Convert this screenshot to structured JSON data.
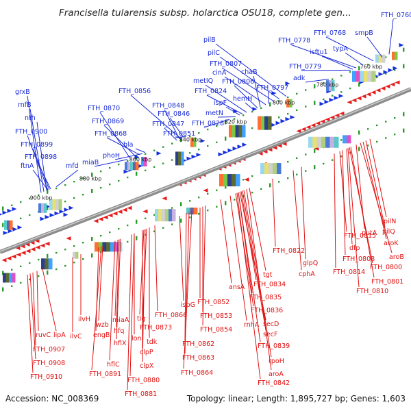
{
  "title": "Francisella tularensis subsp. holarctica OSU18, complete gen...",
  "footer": {
    "accession": "Accession: NC_008369",
    "summary": "Topology: linear; Length: 1,895,727 bp; Genes: 1,603"
  },
  "colors": {
    "top_labels": "#1a2bd6",
    "bottom_labels": "#e01010",
    "backbone": "#8c8c8c",
    "forward_genes": "#1530e0",
    "reverse_genes": "#e81a1a",
    "ticks": "#2a9a2a"
  },
  "position_markers": [
    "760 kbp",
    "780 kbp",
    "800 kbp",
    "820 kbp",
    "840 kbp",
    "860 kbp",
    "880 kbp",
    "900 kbp"
  ],
  "top_labels": [
    "FTH_0760",
    "FTH_0768",
    "smpB",
    "FTH_0778",
    "isftu1",
    "typA",
    "FTH_0779",
    "adk",
    "pilB",
    "pilC",
    "FTH_0807",
    "cinA",
    "chaB",
    "FTH_0806",
    "metIQ",
    "hemH",
    "FTH_0797",
    "FTH_0824",
    "ispF",
    "metN",
    "FTH_0828",
    "FTH_0856",
    "FTH_0848",
    "FTH_0846",
    "FTH_0847",
    "FTH_0851",
    "FTH_0870",
    "FTH_0869",
    "FTH_0868",
    "bla",
    "phoH",
    "miaB",
    "mfd",
    "grxB",
    "rnfB",
    "nth",
    "FTH_0900",
    "FTH_0899",
    "FTH_0898",
    "ftnA"
  ],
  "bottom_labels": [
    "pilN",
    "pilQ",
    "aroK",
    "putA",
    "aroB",
    "dfp",
    "FTH_0815",
    "FTH_0808",
    "FTH_0800",
    "FTH_0814",
    "FTH_0801",
    "FTH_0810",
    "FTH_0822",
    "glpQ",
    "cphA",
    "tgt",
    "FTH_0834",
    "ansA",
    "FTH_0835",
    "FTH_0836",
    "rnhA",
    "secD",
    "secF",
    "FTH_0839",
    "rpoH",
    "aroA",
    "FTH_0842",
    "FTH_0852",
    "FTH_0853",
    "FTH_0854",
    "ispG",
    "FTH_0862",
    "FTH_0863",
    "FTH_0864",
    "FTH_0866",
    "tig",
    "FTH_0873",
    "tdk",
    "clpP",
    "clpX",
    "lon",
    "FTH_0880",
    "FTH_0881",
    "miaA",
    "hfq",
    "hflX",
    "hflC",
    "FTH_0891",
    "wzb",
    "engB",
    "ilvH",
    "ilvC",
    "ruvC",
    "lipA",
    "FTH_0907",
    "FTH_0908",
    "FTH_0910"
  ]
}
